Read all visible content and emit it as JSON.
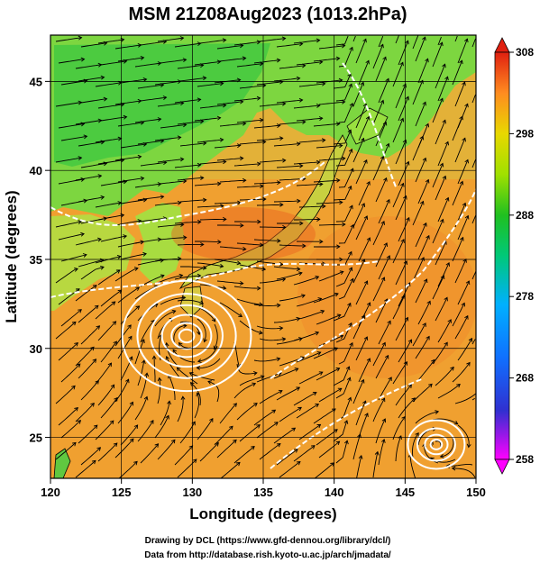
{
  "title": "MSM 21Z08Aug2023 (1013.2hPa)",
  "x_axis": {
    "label": "Longitude (degrees)",
    "ticks": [
      "120",
      "125",
      "130",
      "135",
      "140",
      "145",
      "150"
    ],
    "range": [
      120,
      150
    ]
  },
  "y_axis": {
    "label": "Latitude  (degrees)",
    "ticks": [
      "25",
      "30",
      "35",
      "40",
      "45"
    ],
    "range": [
      22.7,
      47.6
    ]
  },
  "colorbar": {
    "ticks": [
      "308",
      "298",
      "288",
      "278",
      "268",
      "258"
    ],
    "range": [
      258,
      308
    ],
    "colors": [
      "#ff00ff",
      "#3030d0",
      "#00a0ff",
      "#00d0a0",
      "#20c020",
      "#90e000",
      "#e0e000",
      "#ffa000",
      "#ff6020",
      "#e02010"
    ]
  },
  "field": {
    "sea_color": "#f0a030",
    "warm_land_color": "#e89030",
    "cool_land_color": "#7dd640",
    "mountain_color": "#40c840",
    "grid_color": "#000000",
    "streamline_color": "#000000",
    "isobar_color": "#ffffff"
  },
  "vortices": [
    {
      "name": "typhoon-center",
      "lon": 129.6,
      "lat": 30.7
    },
    {
      "name": "tropical-low-center",
      "lon": 147.2,
      "lat": 24.6
    }
  ],
  "footer": {
    "line1": "Drawing by DCL (https://www.gfd-dennou.org/library/dcl/)",
    "line2": "Data from http://database.rish.kyoto-u.ac.jp/arch/jmadata/"
  }
}
